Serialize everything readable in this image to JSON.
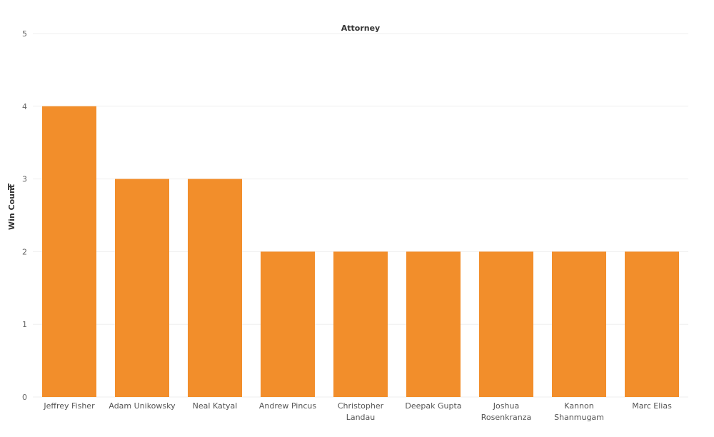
{
  "chart_data": {
    "type": "bar",
    "title": "Attorney",
    "xlabel": "",
    "ylabel": "Win Count",
    "categories": [
      "Jeffrey Fisher",
      "Adam Unikowsky",
      "Neal Katyal",
      "Andrew Pincus",
      "Christopher Landau",
      "Deepak Gupta",
      "Joshua Rosenkranza",
      "Kannon Shanmugam",
      "Marc Elias"
    ],
    "category_lines": [
      [
        "Jeffrey Fisher"
      ],
      [
        "Adam Unikowsky"
      ],
      [
        "Neal Katyal"
      ],
      [
        "Andrew Pincus"
      ],
      [
        "Christopher",
        "Landau"
      ],
      [
        "Deepak Gupta"
      ],
      [
        "Joshua",
        "Rosenkranza"
      ],
      [
        "Kannon",
        "Shanmugam"
      ],
      [
        "Marc Elias"
      ]
    ],
    "values": [
      4,
      3,
      3,
      2,
      2,
      2,
      2,
      2,
      2
    ],
    "ylim": [
      0,
      5
    ],
    "yticks": [
      0,
      1,
      2,
      3,
      4,
      5
    ],
    "bar_color": "#f28e2b",
    "grid": true,
    "legend": "none"
  }
}
